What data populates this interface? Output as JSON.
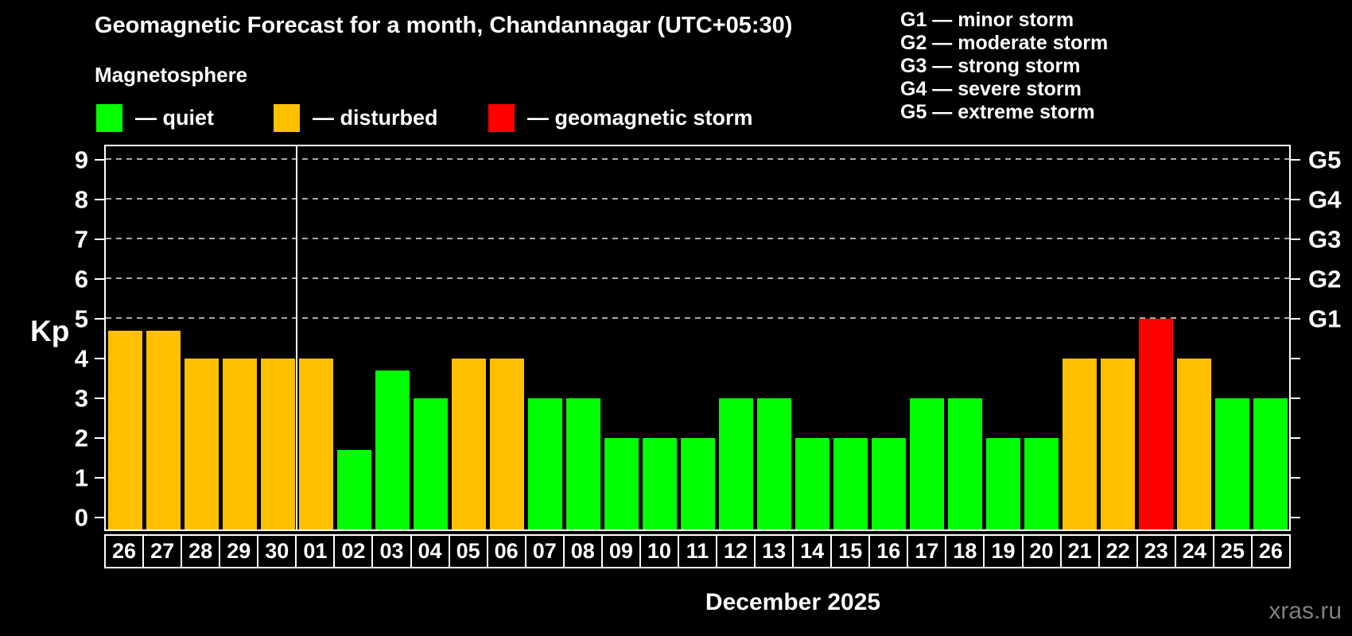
{
  "header": {
    "title": "Geomagnetic Forecast for a month, Chandannagar (UTC+05:30)",
    "subtitle": "Magnetosphere"
  },
  "legend": {
    "items": [
      {
        "name": "quiet",
        "label": "— quiet",
        "status": "quiet"
      },
      {
        "name": "disturbed",
        "label": "— disturbed",
        "status": "disturbed"
      },
      {
        "name": "storm",
        "label": "— geomagnetic storm",
        "status": "storm"
      }
    ]
  },
  "g_legend": {
    "items": [
      {
        "code": "G1",
        "text": "G1 — minor storm"
      },
      {
        "code": "G2",
        "text": "G2 — moderate storm"
      },
      {
        "code": "G3",
        "text": "G3 — strong storm"
      },
      {
        "code": "G4",
        "text": "G4 — severe storm"
      },
      {
        "code": "G5",
        "text": "G5 — extreme storm"
      }
    ]
  },
  "colors": {
    "quiet": "#00ff00",
    "disturbed": "#ffc000",
    "storm": "#ff0000",
    "background": "#000000",
    "axis": "#ffffff",
    "gridline": "#aaaaaa",
    "watermark": "#808080"
  },
  "chart_data": {
    "type": "bar",
    "title": "Geomagnetic Forecast for a month, Chandannagar (UTC+05:30)",
    "subtitle": "Magnetosphere",
    "ylabel": "Kp",
    "xlabel": "December 2025",
    "ylim": [
      0,
      9
    ],
    "y_ticks": [
      0,
      1,
      2,
      3,
      4,
      5,
      6,
      7,
      8,
      9
    ],
    "gridlines_at": [
      5,
      6,
      7,
      8,
      9
    ],
    "grid_style": "dashed",
    "legend_position": "top-left",
    "right_axis_labels": [
      {
        "kp": 5,
        "label": "G1"
      },
      {
        "kp": 6,
        "label": "G2"
      },
      {
        "kp": 7,
        "label": "G3"
      },
      {
        "kp": 8,
        "label": "G4"
      },
      {
        "kp": 9,
        "label": "G5"
      }
    ],
    "categories": [
      "26",
      "27",
      "28",
      "29",
      "30",
      "01",
      "02",
      "03",
      "04",
      "05",
      "06",
      "07",
      "08",
      "09",
      "10",
      "11",
      "12",
      "13",
      "14",
      "15",
      "16",
      "17",
      "18",
      "19",
      "20",
      "21",
      "22",
      "23",
      "24",
      "25",
      "26"
    ],
    "values": [
      4.7,
      4.7,
      4,
      4,
      4,
      4,
      1.7,
      3.7,
      3,
      4,
      4,
      3,
      3,
      2,
      2,
      2,
      3,
      3,
      2,
      2,
      2,
      3,
      3,
      2,
      2,
      4,
      4,
      5,
      4,
      3,
      3
    ],
    "statuses": [
      "disturbed",
      "disturbed",
      "disturbed",
      "disturbed",
      "disturbed",
      "disturbed",
      "quiet",
      "quiet",
      "quiet",
      "disturbed",
      "disturbed",
      "quiet",
      "quiet",
      "quiet",
      "quiet",
      "quiet",
      "quiet",
      "quiet",
      "quiet",
      "quiet",
      "quiet",
      "quiet",
      "quiet",
      "quiet",
      "quiet",
      "disturbed",
      "disturbed",
      "storm",
      "disturbed",
      "quiet",
      "quiet"
    ],
    "month_separator_after_index": 4,
    "month_label": "December 2025"
  },
  "watermark": "xras.ru"
}
